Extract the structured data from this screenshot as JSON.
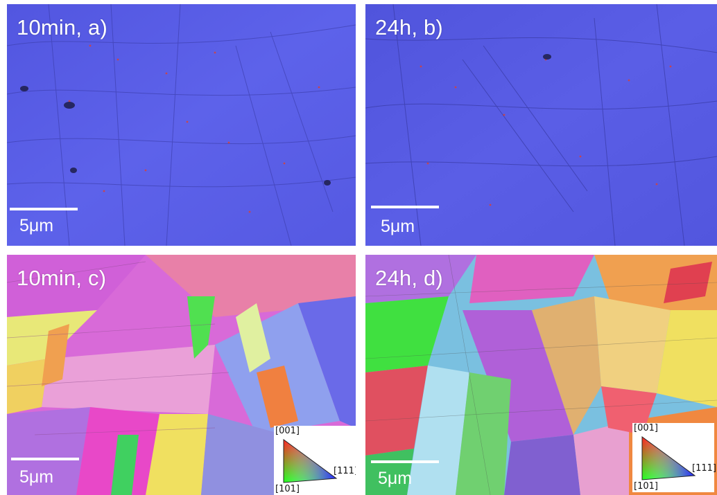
{
  "panels": {
    "a": {
      "label": "10min, a)",
      "scale": "5μm"
    },
    "b": {
      "label": "24h, b)",
      "scale": "5μm"
    },
    "c": {
      "label": "10min, c)",
      "scale": "5μm"
    },
    "d": {
      "label": "24h, d)",
      "scale": "5μm"
    }
  },
  "legend": {
    "top": "[001]",
    "bottom_left": "[101]",
    "right": "[111]"
  },
  "colors": {
    "phase_map_blue": "#5b5fe6",
    "phase_boundary_red": "#e0402a",
    "ipf_red": "#e8404a",
    "ipf_green": "#3ee04a",
    "ipf_blue": "#3a3aee"
  }
}
